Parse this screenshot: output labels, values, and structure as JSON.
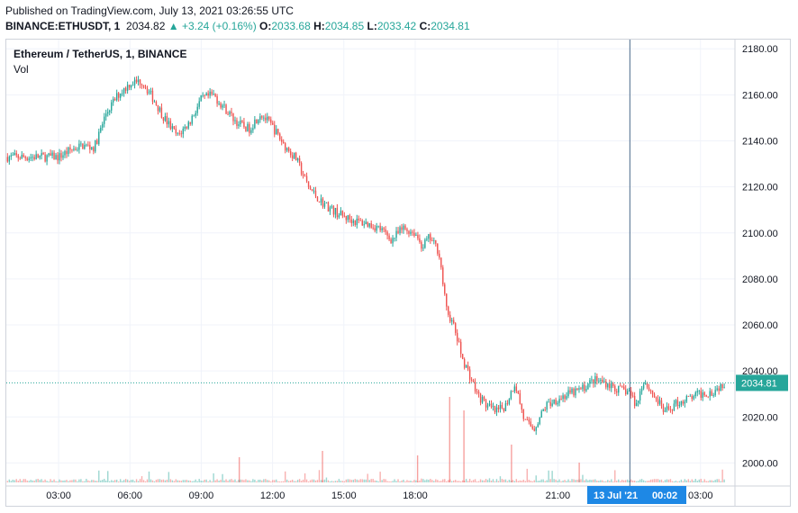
{
  "header": {
    "published": "Published on TradingView.com, July 13, 2021 03:26:55 UTC",
    "symbol": "BINANCE:ETHUSDT, 1",
    "last": "2034.82",
    "change": "▲ +3.24 (+0.16%)",
    "open_label": "O:",
    "open": "2033.68",
    "high_label": "H:",
    "high": "2034.85",
    "low_label": "L:",
    "low": "2033.42",
    "close_label": "C:",
    "close": "2034.81"
  },
  "legend": {
    "title": "Ethereum / TetherUS, 1, BINANCE",
    "volume": "Vol"
  },
  "crosshair": {
    "date_label": "13 Jul '21",
    "time_label": "00:02"
  },
  "colors": {
    "up": "#26a69a",
    "down": "#ef5350",
    "grid": "#f0f3fa",
    "axis_text": "#131722",
    "crosshair": "#4a6a8a",
    "label_bg": "#1e88e5"
  },
  "chart_data": {
    "type": "candlestick",
    "title": "Ethereum / TetherUS, 1, BINANCE",
    "x_ticks": [
      "03:00",
      "06:00",
      "09:00",
      "12:00",
      "15:00",
      "18:00",
      "21:00",
      "03:00"
    ],
    "y_ticks": [
      2000,
      2020,
      2040,
      2060,
      2080,
      2100,
      2120,
      2140,
      2160,
      2180
    ],
    "ylim": [
      1990,
      2184
    ],
    "last_price": 2034.81,
    "last_price_label": "2034.81",
    "grid": true,
    "price_path_hours": [
      0,
      0.5,
      1,
      1.5,
      2,
      2.5,
      3,
      3.5,
      4,
      4.5,
      5,
      5.5,
      6,
      6.5,
      7,
      7.5,
      8,
      8.5,
      9,
      9.5,
      10,
      10.5,
      11,
      11.5,
      12,
      12.5,
      13,
      13.5,
      14,
      14.5,
      15,
      15.3,
      15.6,
      16,
      16.3,
      16.6,
      17,
      17.3,
      17.6,
      18,
      18.4,
      18.8,
      19.2,
      19.6,
      20,
      20.5,
      21,
      21.5,
      22,
      22.5,
      23,
      23.5,
      24,
      24.3,
      24.6,
      25,
      25.5,
      26,
      26.5,
      27,
      27.5,
      28
    ],
    "price_path_values": [
      2133,
      2136,
      2138,
      2137,
      2152,
      2160,
      2165,
      2166,
      2158,
      2149,
      2142,
      2148,
      2158,
      2160,
      2154,
      2148,
      2145,
      2152,
      2146,
      2138,
      2132,
      2120,
      2114,
      2110,
      2107,
      2105,
      2104,
      2102,
      2097,
      2102,
      2100,
      2094,
      2098,
      2092,
      2067,
      2060,
      2045,
      2038,
      2030,
      2025,
      2022,
      2025,
      2035,
      2018,
      2015,
      2025,
      2028,
      2030,
      2032,
      2036,
      2035,
      2032,
      2031,
      2025,
      2036,
      2030,
      2022,
      2026,
      2028,
      2030,
      2031,
      2034.81
    ]
  }
}
